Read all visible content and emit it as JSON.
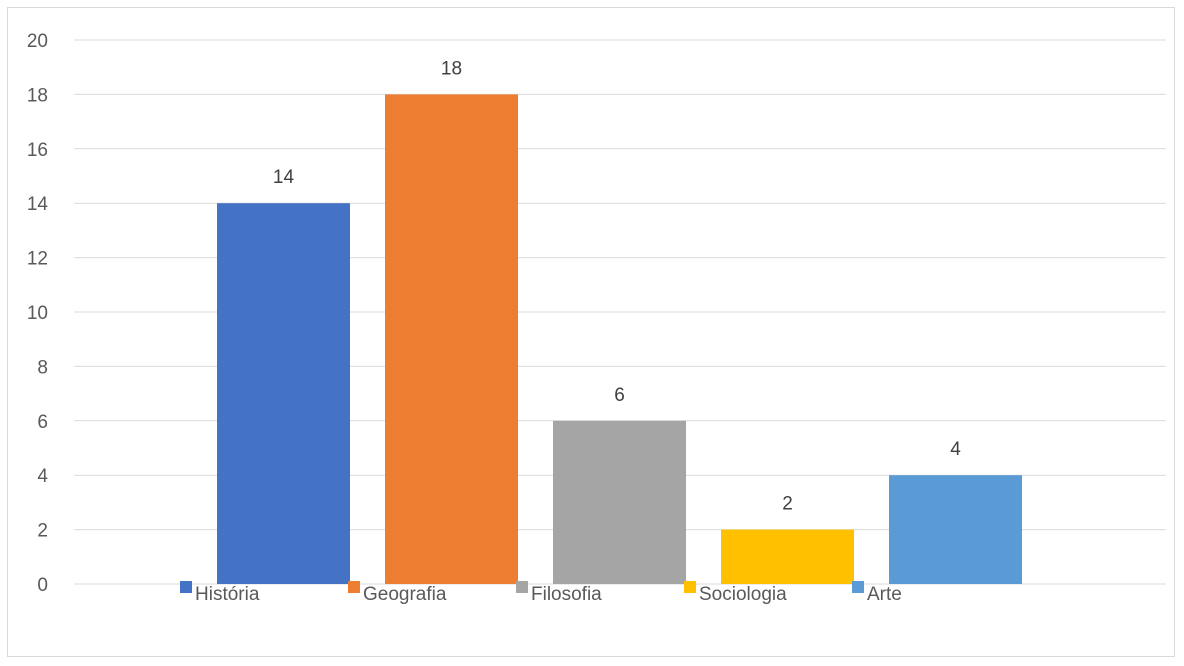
{
  "chart_data": {
    "type": "bar",
    "categories": [
      "História",
      "Geografia",
      "Filosofia",
      "Sociologia",
      "Arte"
    ],
    "values": [
      14,
      18,
      6,
      2,
      4
    ],
    "colors": [
      "#4472c4",
      "#ed7d31",
      "#a5a5a5",
      "#ffc000",
      "#5b9bd5"
    ],
    "ylim": [
      0,
      20
    ],
    "yticks": [
      0,
      2,
      4,
      6,
      8,
      10,
      12,
      14,
      16,
      18,
      20
    ],
    "data_labels": [
      "14",
      "18",
      "6",
      "2",
      "4"
    ],
    "grid": true,
    "legend": {
      "position": "bottom",
      "entries": [
        "História",
        "Geografia",
        "Filosofia",
        "Sociologia",
        "Arte"
      ]
    }
  }
}
